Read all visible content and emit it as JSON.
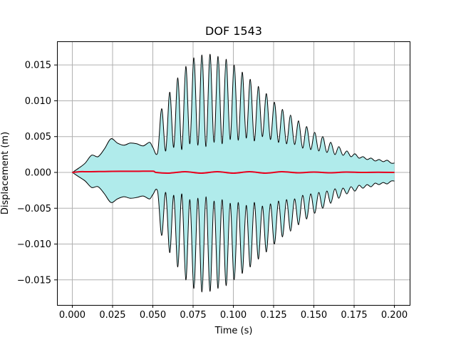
{
  "chart_data": {
    "type": "area",
    "title": "DOF 1543",
    "xlabel": "Time (s)",
    "ylabel": "Displacement (m)",
    "xlim": [
      -0.0095,
      0.2095
    ],
    "ylim": [
      -0.0185,
      0.0183
    ],
    "grid": true,
    "x_ticks": [
      0.0,
      0.025,
      0.05,
      0.075,
      0.1,
      0.125,
      0.15,
      0.175,
      0.2
    ],
    "x_tick_labels": [
      "0.000",
      "0.025",
      "0.050",
      "0.075",
      "0.100",
      "0.125",
      "0.150",
      "0.175",
      "0.200"
    ],
    "y_ticks": [
      -0.015,
      -0.01,
      -0.005,
      0.0,
      0.005,
      0.01,
      0.015
    ],
    "y_tick_labels": [
      "−0.015",
      "−0.010",
      "−0.005",
      "0.000",
      "0.005",
      "0.010",
      "0.015"
    ],
    "colors": {
      "envelope_fill": "#b0ebeb",
      "envelope_line": "#000000",
      "mean_line": "#e8001c",
      "mean_secondary": "#5a1aa0",
      "grid": "#b0b0b0"
    },
    "upper_envelope": {
      "x": [
        0.0,
        0.004,
        0.008,
        0.012,
        0.016,
        0.02,
        0.024,
        0.028,
        0.032,
        0.036,
        0.04,
        0.044,
        0.048,
        0.05,
        0.053,
        0.0555,
        0.058,
        0.0605,
        0.063,
        0.0655,
        0.068,
        0.0705,
        0.073,
        0.0755,
        0.078,
        0.0805,
        0.083,
        0.0855,
        0.088,
        0.0905,
        0.093,
        0.0955,
        0.098,
        0.1005,
        0.103,
        0.1055,
        0.108,
        0.1105,
        0.113,
        0.1155,
        0.118,
        0.1205,
        0.123,
        0.1255,
        0.128,
        0.1305,
        0.133,
        0.1355,
        0.138,
        0.1405,
        0.143,
        0.1455,
        0.148,
        0.1505,
        0.153,
        0.1555,
        0.158,
        0.1605,
        0.163,
        0.1655,
        0.168,
        0.1705,
        0.173,
        0.1755,
        0.178,
        0.1805,
        0.183,
        0.1855,
        0.188,
        0.1905,
        0.193,
        0.1955,
        0.198,
        0.2
      ],
      "y": [
        0.0,
        0.0006,
        0.0013,
        0.0024,
        0.0022,
        0.0033,
        0.0047,
        0.0041,
        0.0038,
        0.0041,
        0.004,
        0.0037,
        0.0042,
        0.0035,
        0.0028,
        0.0089,
        0.003,
        0.0112,
        0.0035,
        0.0132,
        0.0032,
        0.0148,
        0.004,
        0.016,
        0.0038,
        0.0164,
        0.0036,
        0.0165,
        0.0042,
        0.0162,
        0.004,
        0.0158,
        0.0046,
        0.015,
        0.0045,
        0.014,
        0.0048,
        0.013,
        0.0044,
        0.012,
        0.005,
        0.011,
        0.0046,
        0.0098,
        0.0042,
        0.0088,
        0.004,
        0.008,
        0.0039,
        0.0072,
        0.0034,
        0.0064,
        0.0032,
        0.0056,
        0.003,
        0.005,
        0.0028,
        0.0042,
        0.0025,
        0.0036,
        0.0024,
        0.003,
        0.0022,
        0.0026,
        0.002,
        0.0022,
        0.0018,
        0.002,
        0.0016,
        0.0018,
        0.0015,
        0.0017,
        0.0013,
        0.0013
      ]
    },
    "lower_envelope": {
      "x": [
        0.0,
        0.004,
        0.008,
        0.012,
        0.016,
        0.02,
        0.024,
        0.028,
        0.032,
        0.036,
        0.04,
        0.044,
        0.048,
        0.05,
        0.053,
        0.0555,
        0.058,
        0.0605,
        0.063,
        0.0655,
        0.068,
        0.0705,
        0.073,
        0.0755,
        0.078,
        0.0805,
        0.083,
        0.0855,
        0.088,
        0.0905,
        0.093,
        0.0955,
        0.098,
        0.1005,
        0.103,
        0.1055,
        0.108,
        0.1105,
        0.113,
        0.1155,
        0.118,
        0.1205,
        0.123,
        0.1255,
        0.128,
        0.1305,
        0.133,
        0.1355,
        0.138,
        0.1405,
        0.143,
        0.1455,
        0.148,
        0.1505,
        0.153,
        0.1555,
        0.158,
        0.1605,
        0.163,
        0.1655,
        0.168,
        0.1705,
        0.173,
        0.1755,
        0.178,
        0.1805,
        0.183,
        0.1855,
        0.188,
        0.1905,
        0.193,
        0.1955,
        0.198,
        0.2
      ],
      "y": [
        0.0,
        -0.0006,
        -0.0012,
        -0.0021,
        -0.002,
        -0.003,
        -0.0042,
        -0.0037,
        -0.0034,
        -0.0036,
        -0.0035,
        -0.0033,
        -0.0037,
        -0.0031,
        -0.0027,
        -0.0088,
        -0.0028,
        -0.0112,
        -0.0032,
        -0.0132,
        -0.003,
        -0.015,
        -0.0038,
        -0.0162,
        -0.0036,
        -0.0167,
        -0.0034,
        -0.0166,
        -0.004,
        -0.0162,
        -0.0038,
        -0.0158,
        -0.0043,
        -0.015,
        -0.0042,
        -0.0141,
        -0.0046,
        -0.0132,
        -0.0042,
        -0.0121,
        -0.0047,
        -0.0111,
        -0.0044,
        -0.01,
        -0.004,
        -0.009,
        -0.0038,
        -0.0082,
        -0.0037,
        -0.0073,
        -0.0032,
        -0.0065,
        -0.003,
        -0.0057,
        -0.0028,
        -0.005,
        -0.0026,
        -0.0043,
        -0.0023,
        -0.0036,
        -0.0022,
        -0.003,
        -0.002,
        -0.0026,
        -0.0018,
        -0.0022,
        -0.0017,
        -0.002,
        -0.0015,
        -0.0017,
        -0.0014,
        -0.0016,
        -0.0012,
        -0.0012
      ]
    },
    "mean_series": {
      "x": [
        0.0,
        0.005,
        0.01,
        0.02,
        0.03,
        0.04,
        0.05,
        0.052,
        0.06,
        0.07,
        0.08,
        0.09,
        0.1,
        0.11,
        0.12,
        0.13,
        0.14,
        0.15,
        0.16,
        0.17,
        0.18,
        0.19,
        0.2
      ],
      "y": [
        0.0,
        0.0001,
        0.0001,
        0.00013,
        0.00016,
        0.00016,
        0.00017,
        0.0,
        -0.0001,
        0.0001,
        -0.0001,
        0.0001,
        -0.0001,
        0.0001,
        -0.0001,
        0.0001,
        -5e-05,
        5e-05,
        -5e-05,
        5e-05,
        0.0,
        2e-05,
        0.0
      ]
    }
  }
}
